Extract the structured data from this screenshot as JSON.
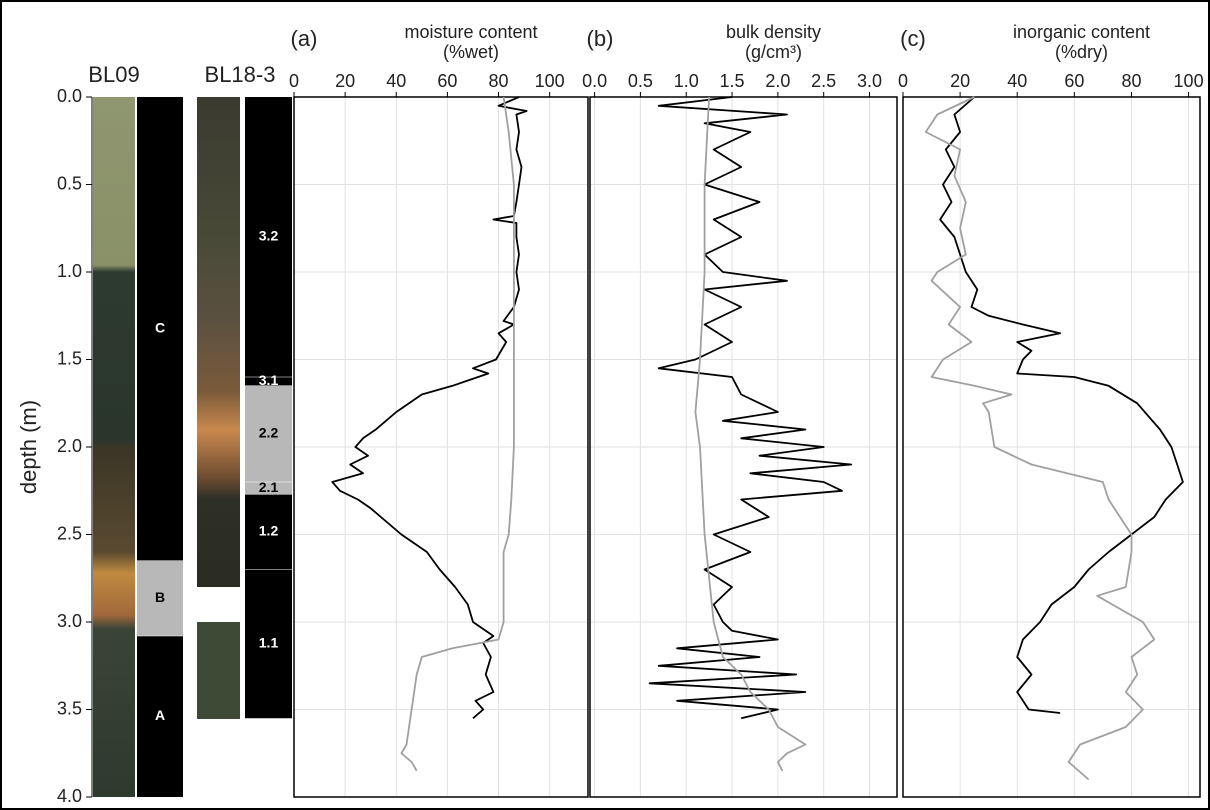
{
  "chart_data": [
    {
      "type": "line",
      "panel": "(a)",
      "title": "moisture content",
      "subtitle": "(%wet)",
      "xlim": [
        0,
        115
      ],
      "xticks": [
        0,
        20,
        40,
        60,
        80,
        100
      ],
      "ylabel": "depth (m)",
      "ylim": [
        0,
        4
      ],
      "yticks": [
        {
          "value": 0,
          "label": "0.0"
        },
        0.5,
        {
          "value": 1,
          "label": "1.0"
        },
        1.5,
        {
          "value": 2,
          "label": "2.0"
        },
        2.5,
        {
          "value": 3,
          "label": "3.0"
        },
        3.5,
        {
          "value": 4,
          "label": "4.0"
        }
      ],
      "grid": true,
      "series": [
        {
          "color": "#000000",
          "depth": [
            0.0,
            0.05,
            0.08,
            0.1,
            0.2,
            0.3,
            0.4,
            0.5,
            0.6,
            0.68,
            0.7,
            0.72,
            0.8,
            0.9,
            1.0,
            1.1,
            1.2,
            1.28,
            1.3,
            1.35,
            1.4,
            1.5,
            1.55,
            1.58,
            1.6,
            1.65,
            1.7,
            1.8,
            1.9,
            1.95,
            2.0,
            2.05,
            2.1,
            2.15,
            2.2,
            2.25,
            2.3,
            2.35,
            2.4,
            2.5,
            2.6,
            2.7,
            2.8,
            2.9,
            3.0,
            3.08,
            3.12,
            3.2,
            3.3,
            3.4,
            3.45,
            3.5,
            3.55
          ],
          "values": [
            88,
            80,
            91,
            87,
            88,
            87,
            89,
            88,
            87,
            86,
            78,
            87,
            87,
            88,
            87,
            88,
            86,
            82,
            86,
            80,
            83,
            79,
            70,
            76,
            72,
            62,
            50,
            40,
            32,
            27,
            24,
            29,
            22,
            27,
            15,
            18,
            25,
            30,
            34,
            42,
            52,
            57,
            63,
            68,
            70,
            78,
            74,
            77,
            75,
            78,
            71,
            74,
            70
          ]
        },
        {
          "color": "#a0a0a0",
          "depth": [
            0.0,
            0.2,
            0.5,
            1.0,
            1.5,
            2.0,
            2.3,
            2.5,
            2.6,
            2.8,
            3.0,
            3.1,
            3.15,
            3.2,
            3.3,
            3.5,
            3.7,
            3.75,
            3.8,
            3.85
          ],
          "values": [
            82,
            84,
            86,
            86,
            86,
            86,
            85,
            84,
            82,
            82,
            82,
            80,
            62,
            50,
            48,
            46,
            44,
            42,
            46,
            48
          ]
        }
      ]
    },
    {
      "type": "line",
      "panel": "(b)",
      "title": "bulk density",
      "subtitle": "(g/cm³)",
      "xlim": [
        -0.05,
        3.3
      ],
      "xticks": [
        {
          "value": 0,
          "label": "0.0"
        },
        0.5,
        {
          "value": 1,
          "label": "1.0"
        },
        1.5,
        {
          "value": 2,
          "label": "2.0"
        },
        2.5,
        {
          "value": 3,
          "label": "3.0"
        }
      ],
      "ylim": [
        0,
        4
      ],
      "yticks": [
        0,
        0.5,
        1,
        1.5,
        2,
        2.5,
        3,
        3.5,
        4
      ],
      "grid": true,
      "series": [
        {
          "color": "#000000",
          "depth": [
            0.0,
            0.05,
            0.1,
            0.15,
            0.2,
            0.3,
            0.4,
            0.5,
            0.6,
            0.7,
            0.8,
            0.9,
            1.0,
            1.05,
            1.1,
            1.2,
            1.3,
            1.4,
            1.5,
            1.55,
            1.6,
            1.7,
            1.8,
            1.85,
            1.9,
            1.95,
            2.0,
            2.05,
            2.1,
            2.15,
            2.2,
            2.25,
            2.3,
            2.4,
            2.5,
            2.6,
            2.7,
            2.8,
            2.9,
            3.0,
            3.05,
            3.1,
            3.15,
            3.2,
            3.25,
            3.3,
            3.35,
            3.4,
            3.45,
            3.5,
            3.55
          ],
          "values": [
            1.5,
            0.7,
            2.1,
            1.2,
            1.7,
            1.3,
            1.6,
            1.2,
            1.8,
            1.3,
            1.6,
            1.2,
            1.4,
            2.1,
            1.2,
            1.6,
            1.2,
            1.5,
            1.1,
            0.7,
            1.5,
            1.6,
            2.0,
            1.4,
            2.3,
            1.6,
            2.5,
            1.8,
            2.8,
            1.7,
            2.5,
            2.7,
            1.6,
            1.9,
            1.3,
            1.7,
            1.2,
            1.5,
            1.3,
            1.4,
            1.5,
            2.0,
            0.9,
            1.8,
            0.7,
            2.2,
            0.6,
            2.3,
            0.9,
            2.0,
            1.6
          ]
        },
        {
          "color": "#a0a0a0",
          "depth": [
            0.0,
            0.5,
            1.0,
            1.5,
            1.8,
            2.0,
            2.5,
            3.0,
            3.2,
            3.3,
            3.4,
            3.5,
            3.6,
            3.7,
            3.75,
            3.8,
            3.85
          ],
          "values": [
            1.25,
            1.2,
            1.2,
            1.15,
            1.1,
            1.15,
            1.2,
            1.3,
            1.4,
            1.6,
            1.7,
            1.9,
            2.0,
            2.3,
            2.1,
            2.0,
            2.05
          ]
        }
      ]
    },
    {
      "type": "line",
      "panel": "(c)",
      "title": "inorganic content",
      "subtitle": "(%dry)",
      "xlim": [
        0,
        104
      ],
      "xticks": [
        0,
        20,
        40,
        60,
        80,
        100
      ],
      "ylim": [
        0,
        4
      ],
      "yticks": [
        0,
        0.5,
        1,
        1.5,
        2,
        2.5,
        3,
        3.5,
        4
      ],
      "grid": true,
      "series": [
        {
          "color": "#000000",
          "depth": [
            0.0,
            0.1,
            0.2,
            0.3,
            0.4,
            0.5,
            0.6,
            0.7,
            0.8,
            0.9,
            1.0,
            1.1,
            1.2,
            1.25,
            1.3,
            1.35,
            1.4,
            1.45,
            1.5,
            1.58,
            1.6,
            1.65,
            1.75,
            1.9,
            2.0,
            2.1,
            2.2,
            2.3,
            2.4,
            2.5,
            2.6,
            2.7,
            2.8,
            2.9,
            3.0,
            3.1,
            3.2,
            3.3,
            3.4,
            3.5,
            3.52
          ],
          "values": [
            25,
            18,
            20,
            15,
            18,
            14,
            17,
            13,
            18,
            20,
            22,
            26,
            24,
            30,
            42,
            55,
            40,
            45,
            42,
            40,
            60,
            72,
            82,
            90,
            94,
            96,
            98,
            92,
            88,
            80,
            72,
            65,
            60,
            52,
            48,
            42,
            40,
            45,
            40,
            44,
            55
          ]
        },
        {
          "color": "#a0a0a0",
          "depth": [
            0.0,
            0.1,
            0.2,
            0.3,
            0.45,
            0.6,
            0.75,
            0.9,
            1.0,
            1.05,
            1.2,
            1.3,
            1.4,
            1.5,
            1.6,
            1.65,
            1.7,
            1.75,
            1.8,
            2.0,
            2.1,
            2.2,
            2.3,
            2.4,
            2.5,
            2.6,
            2.8,
            2.85,
            3.0,
            3.1,
            3.2,
            3.3,
            3.4,
            3.5,
            3.6,
            3.7,
            3.8,
            3.9
          ],
          "values": [
            25,
            12,
            8,
            20,
            18,
            22,
            20,
            22,
            12,
            10,
            20,
            16,
            24,
            14,
            10,
            25,
            38,
            28,
            30,
            32,
            45,
            70,
            72,
            76,
            80,
            80,
            78,
            68,
            84,
            88,
            80,
            82,
            78,
            84,
            78,
            62,
            58,
            65
          ]
        }
      ]
    }
  ],
  "cores": [
    {
      "name": "BL09",
      "units": [
        {
          "label": "C",
          "top": 0,
          "bottom": 2.65,
          "color": "#000000"
        },
        {
          "label": "B",
          "top": 2.65,
          "bottom": 3.08,
          "color": "#b8b8b8"
        },
        {
          "label": "A",
          "top": 3.08,
          "bottom": 4.0,
          "color": "#000000"
        }
      ]
    },
    {
      "name": "BL18-3",
      "units": [
        {
          "label": "3.2",
          "top": 0,
          "bottom": 1.6,
          "color": "#000000"
        },
        {
          "label": "3.1",
          "top": 1.6,
          "bottom": 1.65,
          "color": "#000000"
        },
        {
          "label": "2.2",
          "top": 1.65,
          "bottom": 2.2,
          "color": "#b8b8b8"
        },
        {
          "label": "2.1",
          "top": 2.2,
          "bottom": 2.27,
          "color": "#b8b8b8"
        },
        {
          "label": "1.2",
          "top": 2.27,
          "bottom": 2.7,
          "color": "#000000"
        },
        {
          "label": "1.1",
          "top": 2.7,
          "bottom": 3.55,
          "color": "#000000"
        }
      ]
    }
  ]
}
